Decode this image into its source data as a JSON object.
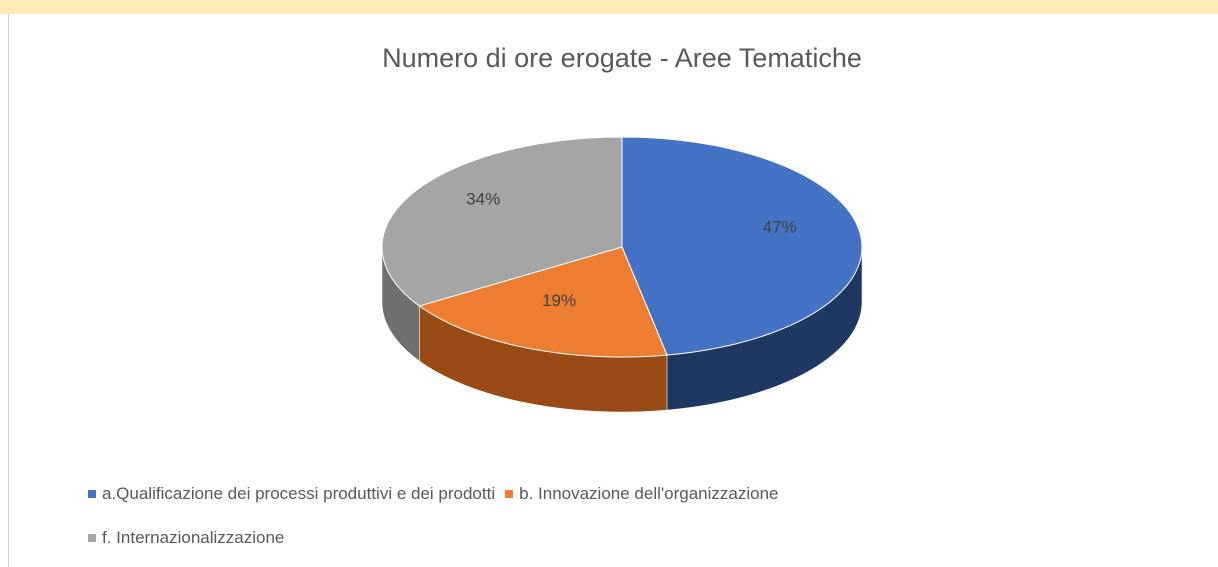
{
  "chart_data": {
    "type": "pie",
    "title": "Numero di ore erogate - Aree Tematiche",
    "categories": [
      "a.Qualificazione dei processi produttivi e dei prodotti",
      "b. Innovazione dell'organizzazione",
      "f. Internazionalizzazione"
    ],
    "values": [
      47,
      19,
      34
    ],
    "value_labels": [
      "47%",
      "19%",
      "34%"
    ],
    "colors": [
      "#4472c4",
      "#ed7d31",
      "#a5a5a5"
    ],
    "side_colors": [
      "#1f3763",
      "#9a4a14",
      "#6f6f6f"
    ],
    "legend": "bottom-left"
  }
}
